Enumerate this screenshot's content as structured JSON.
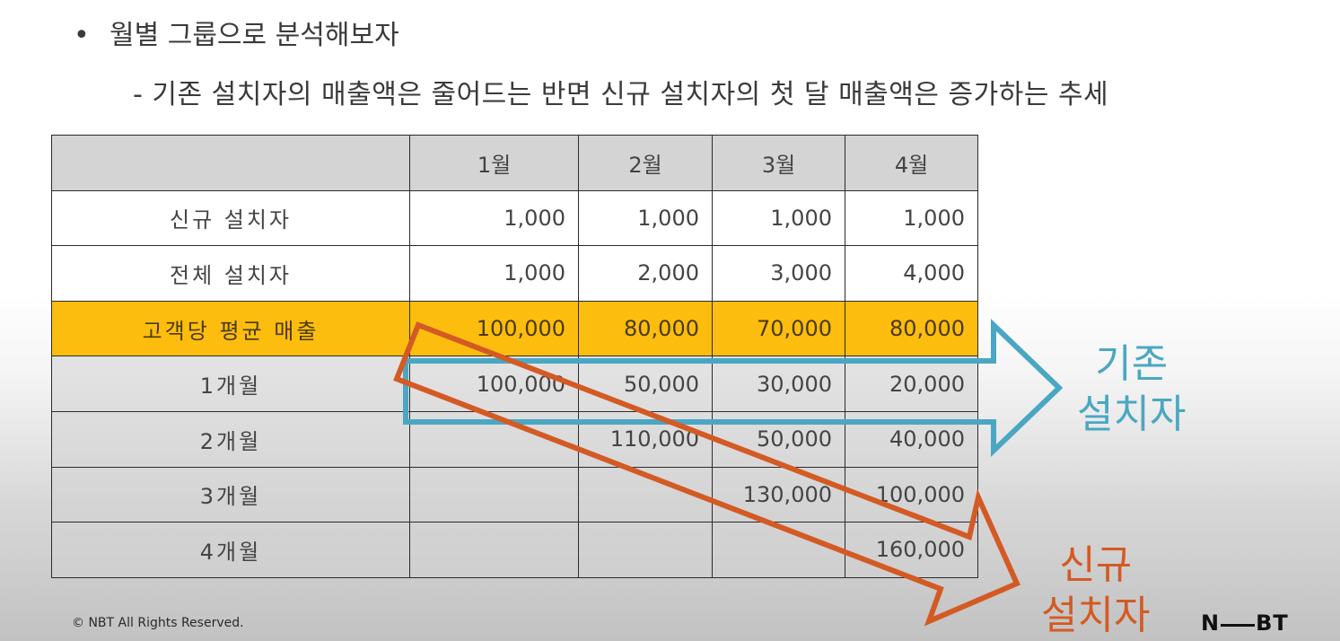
{
  "bullet": {
    "symbol": "•",
    "text": "월별 그룹으로 분석해보자"
  },
  "subtitle": "- 기존 설치자의 매출액은 줄어드는 반면 신규 설치자의 첫 달 매출액은 증가하는 추세",
  "table": {
    "columns": [
      "",
      "1월",
      "2월",
      "3월",
      "4월"
    ],
    "rows": [
      {
        "label": "신규 설치자",
        "values": [
          "1,000",
          "1,000",
          "1,000",
          "1,000"
        ]
      },
      {
        "label": "전체 설치자",
        "values": [
          "1,000",
          "2,000",
          "3,000",
          "4,000"
        ]
      },
      {
        "label": "고객당 평균 매출",
        "values": [
          "100,000",
          "80,000",
          "70,000",
          "80,000"
        ]
      },
      {
        "label": "1개월",
        "values": [
          "100,000",
          "50,000",
          "30,000",
          "20,000"
        ]
      },
      {
        "label": "2개월",
        "values": [
          "",
          "110,000",
          "50,000",
          "40,000"
        ]
      },
      {
        "label": "3개월",
        "values": [
          "",
          "",
          "130,000",
          "100,000"
        ]
      },
      {
        "label": "4개월",
        "values": [
          "",
          "",
          "",
          "160,000"
        ]
      }
    ]
  },
  "annotations": {
    "existing_line1": "기존",
    "existing_line2": "설치자",
    "new_line1": "신규",
    "new_line2": "설치자"
  },
  "footer": {
    "copyright": "© NBT All Rights Reserved.",
    "logo_left": "N",
    "logo_right": "BT"
  },
  "colors": {
    "highlight_row": "#fdbd0f",
    "existing_arrow": "#4aa7c3",
    "new_arrow": "#d45a24"
  }
}
